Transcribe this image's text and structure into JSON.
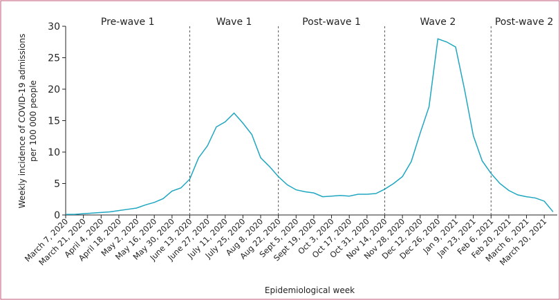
{
  "chart_data": {
    "type": "line",
    "y_label": [
      "Weekly incidence of COVID-19 admissions",
      "per 100 000 people"
    ],
    "x_label": "Epidemiological week",
    "categories": [
      "March 7, 2020",
      null,
      "March 21, 2020",
      null,
      "April 4, 2020",
      null,
      "April 18, 2020",
      null,
      "May 2, 2020",
      null,
      "May 16, 2020",
      null,
      "May 30, 2020",
      null,
      "June 13, 2020",
      null,
      "June 27, 2020",
      null,
      "July 11, 2020",
      null,
      "July 25, 2020",
      null,
      "Aug 8, 2020",
      null,
      "Aug 22, 2020",
      null,
      "Sept 5, 2020",
      null,
      "Sept 19, 2020",
      null,
      "Oct 3, 2020",
      null,
      "Oct 17, 2020",
      null,
      "Oct 31, 2020",
      null,
      "Nov 14, 2020",
      null,
      "Nov 28, 2020",
      null,
      "Dec 12, 2020",
      null,
      "Dec 26, 2020",
      null,
      "Jan 9, 2021",
      null,
      "Jan 23, 2021",
      null,
      "Feb 6, 2021",
      null,
      "Feb 20, 2021",
      null,
      "March 6, 2021",
      null,
      "March 20, 2021",
      null
    ],
    "values": [
      0.1,
      0.1,
      0.2,
      0.3,
      0.4,
      0.5,
      0.7,
      0.9,
      1.1,
      1.6,
      2.0,
      2.6,
      3.8,
      4.3,
      5.7,
      9.1,
      11.0,
      14.0,
      14.8,
      16.2,
      14.6,
      12.8,
      9.1,
      7.7,
      6.1,
      4.8,
      4.0,
      3.7,
      3.5,
      2.9,
      3.0,
      3.1,
      3.0,
      3.3,
      3.3,
      3.4,
      4.1,
      5.0,
      6.1,
      8.5,
      13.0,
      17.2,
      28.0,
      27.5,
      26.7,
      20.0,
      12.6,
      8.6,
      6.6,
      5.0,
      3.9,
      3.2,
      2.9,
      2.7,
      2.2,
      0.5
    ],
    "color": "#1ea6c0",
    "ylim": [
      0,
      30
    ],
    "yticks": [
      0,
      5,
      10,
      15,
      20,
      25,
      30
    ],
    "phases": [
      "Pre-wave 1",
      "Wave 1",
      "Post-wave 1",
      "Wave 2",
      "Post-wave 2"
    ],
    "dividers": [
      "June 13, 2020",
      "Aug 22, 2020",
      "Nov 14, 2020",
      "Feb 6, 2021"
    ]
  }
}
